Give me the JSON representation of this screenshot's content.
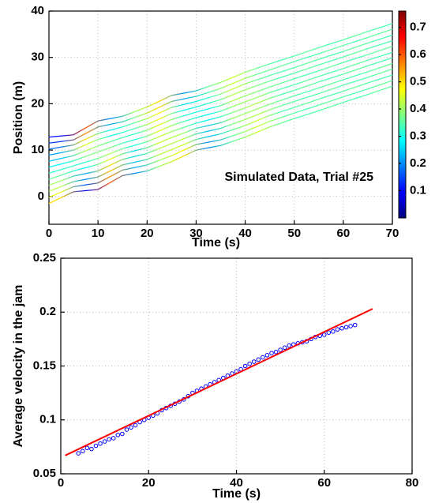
{
  "chart_data": [
    {
      "type": "line",
      "xlabel": "Time (s)",
      "ylabel": "Position (m)",
      "annotation": "Simulated Data, Trial #25",
      "x": [
        0,
        5,
        10,
        15,
        20,
        25,
        30,
        35,
        40,
        45,
        50,
        55,
        60,
        65,
        70
      ],
      "series": [
        {
          "values": [
            -1.5,
            1,
            1.5,
            4.5,
            5.5,
            7.5,
            10,
            11,
            12.8,
            15,
            16.8,
            18.5,
            20.3,
            22,
            23.8
          ]
        },
        {
          "values": [
            -0.2,
            2.1,
            2.9,
            5.7,
            6.8,
            8.8,
            11.2,
            12.2,
            14,
            16.2,
            18,
            19.7,
            21.5,
            23.2,
            25
          ]
        },
        {
          "values": [
            1.1,
            3.2,
            4.2,
            6.8,
            8,
            10.1,
            12.3,
            13.5,
            15.3,
            17.5,
            19.2,
            21,
            22.7,
            24.5,
            26.2
          ]
        },
        {
          "values": [
            2.4,
            4.4,
            5.5,
            8,
            9.3,
            11.4,
            13.5,
            14.7,
            16.6,
            18.7,
            20.5,
            22.2,
            24,
            25.7,
            27.5
          ]
        },
        {
          "values": [
            3.7,
            5.5,
            6.9,
            9.2,
            10.5,
            12.7,
            14.7,
            15.9,
            17.9,
            19.9,
            21.7,
            23.4,
            25.2,
            26.9,
            28.7
          ]
        },
        {
          "values": [
            5,
            6.6,
            8.2,
            10.3,
            11.8,
            14,
            15.8,
            17.2,
            19.1,
            21.2,
            22.9,
            24.7,
            26.4,
            28.2,
            29.9
          ]
        },
        {
          "values": [
            6.3,
            7.7,
            9.6,
            11.5,
            13,
            15.3,
            17,
            18.4,
            20.4,
            22.4,
            24.1,
            25.9,
            27.6,
            29.4,
            31.1
          ]
        },
        {
          "values": [
            7.6,
            8.8,
            10.9,
            12.7,
            14.3,
            16.6,
            18.2,
            19.6,
            21.7,
            23.6,
            25.4,
            27.1,
            28.9,
            30.6,
            32.4
          ]
        },
        {
          "values": [
            8.9,
            10,
            12.3,
            13.8,
            15.5,
            17.9,
            19.3,
            20.9,
            23,
            24.9,
            26.6,
            28.4,
            30.1,
            31.9,
            33.6
          ]
        },
        {
          "values": [
            10.2,
            11.1,
            13.6,
            15,
            16.8,
            19.2,
            20.5,
            22.1,
            24.3,
            26.1,
            27.8,
            29.6,
            31.3,
            33.1,
            34.8
          ]
        },
        {
          "values": [
            11.5,
            12.2,
            15,
            16.1,
            18,
            20.5,
            21.6,
            23.3,
            25.5,
            27.3,
            29.1,
            30.8,
            32.6,
            34.3,
            36.1
          ]
        },
        {
          "values": [
            12.8,
            13.3,
            16.3,
            17.3,
            19.3,
            21.8,
            22.8,
            24.6,
            26.8,
            28.6,
            30.3,
            32.1,
            33.8,
            35.6,
            37.3
          ]
        }
      ],
      "colormap": "jet",
      "clim": [
        0,
        0.76
      ],
      "cticks": [
        0.1,
        0.2,
        0.3,
        0.4,
        0.5,
        0.6,
        0.7
      ],
      "xlim": [
        0,
        70
      ],
      "xticks": [
        0,
        10,
        20,
        30,
        40,
        50,
        60,
        70
      ],
      "ylim": [
        -6,
        40
      ],
      "yticks": [
        0,
        10,
        20,
        30,
        40
      ],
      "grid": true
    },
    {
      "type": "scatter",
      "xlabel": "Time (s)",
      "ylabel": "Average velocity in the jam",
      "series": [
        {
          "type": "scatter",
          "color": "#0000ff",
          "x": [
            4,
            5,
            6,
            7,
            8,
            9,
            10,
            11,
            12,
            13,
            14,
            15,
            16,
            17,
            18,
            19,
            20,
            21,
            22,
            23,
            24,
            25,
            26,
            27,
            28,
            29,
            30,
            31,
            32,
            33,
            34,
            35,
            36,
            37,
            38,
            39,
            40,
            41,
            42,
            43,
            44,
            45,
            46,
            47,
            48,
            49,
            50,
            51,
            52,
            53,
            54,
            55,
            56,
            57,
            58,
            59,
            60,
            61,
            62,
            63,
            64,
            65,
            66,
            67
          ],
          "values": [
            0.069,
            0.071,
            0.074,
            0.073,
            0.076,
            0.078,
            0.08,
            0.082,
            0.083,
            0.086,
            0.087,
            0.091,
            0.093,
            0.095,
            0.098,
            0.1,
            0.102,
            0.104,
            0.106,
            0.109,
            0.111,
            0.113,
            0.115,
            0.117,
            0.119,
            0.122,
            0.125,
            0.127,
            0.129,
            0.131,
            0.133,
            0.135,
            0.137,
            0.139,
            0.141,
            0.143,
            0.145,
            0.147,
            0.15,
            0.152,
            0.154,
            0.156,
            0.158,
            0.16,
            0.162,
            0.163,
            0.165,
            0.167,
            0.169,
            0.17,
            0.171,
            0.172,
            0.173,
            0.175,
            0.177,
            0.178,
            0.179,
            0.181,
            0.182,
            0.184,
            0.185,
            0.186,
            0.187,
            0.188
          ]
        },
        {
          "type": "line",
          "color": "#ff0000",
          "x": [
            1,
            71
          ],
          "values": [
            0.067,
            0.203
          ]
        }
      ],
      "xlim": [
        0,
        80
      ],
      "xticks": [
        0,
        20,
        40,
        60,
        80
      ],
      "ylim": [
        0.05,
        0.25
      ],
      "yticks": [
        0.05,
        0.1,
        0.15,
        0.2,
        0.25
      ],
      "grid": true
    }
  ]
}
